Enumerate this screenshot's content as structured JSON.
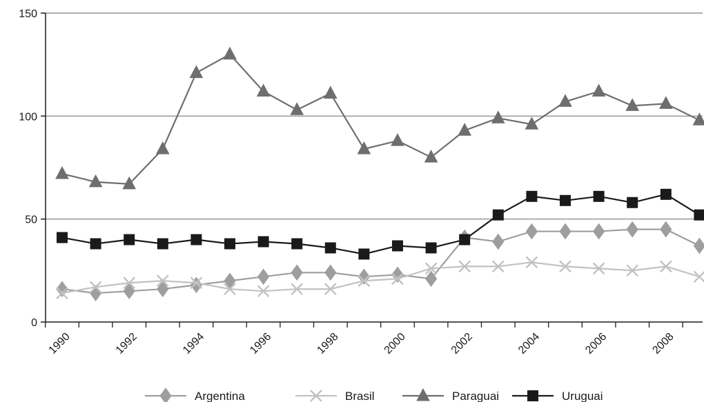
{
  "chart_data": {
    "type": "line",
    "x": [
      1990,
      1991,
      1992,
      1993,
      1994,
      1995,
      1996,
      1997,
      1998,
      1999,
      2000,
      2001,
      2002,
      2003,
      2004,
      2005,
      2006,
      2007,
      2008,
      2009
    ],
    "x_tick_labels": [
      "1990",
      "1992",
      "1994",
      "1996",
      "1998",
      "2000",
      "2002",
      "2004",
      "2006",
      "2008"
    ],
    "y_tick_labels": [
      "0",
      "50",
      "100",
      "150"
    ],
    "ylim": [
      0,
      150
    ],
    "grid": "horizontal",
    "legend_position": "bottom",
    "series": [
      {
        "name": "Argentina",
        "marker": "diamond",
        "color": "#9e9e9e",
        "values": [
          16,
          14,
          15,
          16,
          18,
          20,
          22,
          24,
          24,
          22,
          23,
          21,
          41,
          39,
          44,
          44,
          44,
          45,
          45,
          37
        ]
      },
      {
        "name": "Brasil",
        "marker": "cross",
        "color": "#c2c2c2",
        "values": [
          14,
          17,
          19,
          20,
          19,
          16,
          15,
          16,
          16,
          20,
          21,
          26,
          27,
          27,
          29,
          27,
          26,
          25,
          27,
          22
        ]
      },
      {
        "name": "Paraguai",
        "marker": "triangle",
        "color": "#6e6e6e",
        "values": [
          72,
          68,
          67,
          84,
          121,
          130,
          112,
          103,
          111,
          84,
          88,
          80,
          93,
          99,
          96,
          107,
          112,
          105,
          106,
          98
        ]
      },
      {
        "name": "Uruguai",
        "marker": "square",
        "color": "#1a1a1a",
        "values": [
          41,
          38,
          40,
          38,
          40,
          38,
          39,
          38,
          36,
          33,
          37,
          36,
          40,
          52,
          61,
          59,
          61,
          58,
          62,
          52
        ]
      }
    ]
  }
}
